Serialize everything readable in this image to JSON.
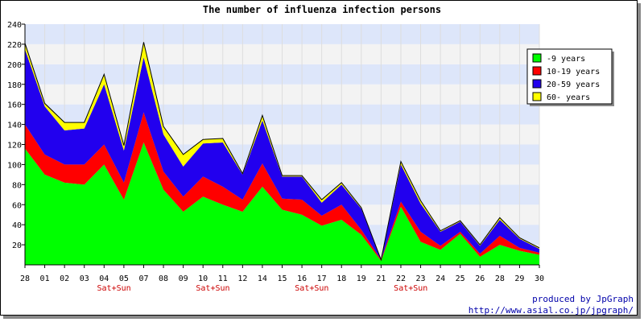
{
  "chart_data": {
    "type": "area",
    "stacked": true,
    "title": "The number of influenza infection persons",
    "xlabel": "",
    "ylabel": "",
    "ylim": [
      0,
      240
    ],
    "yticks": [
      20,
      40,
      60,
      80,
      100,
      120,
      140,
      160,
      180,
      200,
      220,
      240
    ],
    "ytick_labels": [
      "20",
      "40",
      "60",
      "80",
      "100",
      "120",
      "140",
      "160",
      "180",
      "200",
      "220",
      "240"
    ],
    "grid": "horizontal bands",
    "legend_position": "top-right",
    "categories": [
      "28",
      "01",
      "02",
      "03",
      "04",
      "05",
      "07",
      "08",
      "09",
      "10",
      "11",
      "12",
      "14",
      "15",
      "16",
      "17",
      "18",
      "19",
      "21",
      "22",
      "23",
      "24",
      "25",
      "26",
      "28",
      "29",
      "30"
    ],
    "weekend_markers": [
      {
        "index": 4,
        "label": "Sat+Sun"
      },
      {
        "index": 9,
        "label": "Sat+Sun"
      },
      {
        "index": 14,
        "label": "Sat+Sun"
      },
      {
        "index": 19,
        "label": "Sat+Sun"
      }
    ],
    "series": [
      {
        "name": "-9 years",
        "color": "#00ff00",
        "values": [
          116,
          90,
          82,
          80,
          100,
          65,
          122,
          75,
          53,
          68,
          60,
          53,
          78,
          55,
          50,
          39,
          45,
          30,
          4,
          58,
          23,
          15,
          31,
          8,
          20,
          14,
          10
        ]
      },
      {
        "name": "10-19 years",
        "color": "#ff0000",
        "values": [
          24,
          20,
          18,
          20,
          20,
          17,
          30,
          18,
          15,
          20,
          18,
          12,
          23,
          11,
          15,
          10,
          15,
          5,
          1,
          5,
          10,
          4,
          2,
          3,
          9,
          3,
          2
        ]
      },
      {
        "name": "20-59 years",
        "color": "#2200ee",
        "values": [
          75,
          48,
          34,
          36,
          60,
          32,
          55,
          37,
          30,
          33,
          44,
          25,
          43,
          22,
          23,
          13,
          20,
          21,
          0,
          37,
          28,
          14,
          10,
          8,
          16,
          9,
          4
        ]
      },
      {
        "name": "60- years",
        "color": "#ffff00",
        "values": [
          6,
          3,
          8,
          6,
          10,
          5,
          15,
          8,
          12,
          4,
          4,
          1,
          5,
          1,
          1,
          3,
          2,
          1,
          0,
          3,
          3,
          1,
          1,
          1,
          2,
          1,
          1
        ]
      }
    ],
    "colors": {
      "band_light": "#dde6fa",
      "band_gray": "#f3f3f3",
      "weekend_label": "#cc0000",
      "credit": "#0000aa"
    }
  },
  "credit": {
    "line1": "produced by JpGraph",
    "line2": "http://www.asial.co.jp/jpgraph/"
  }
}
